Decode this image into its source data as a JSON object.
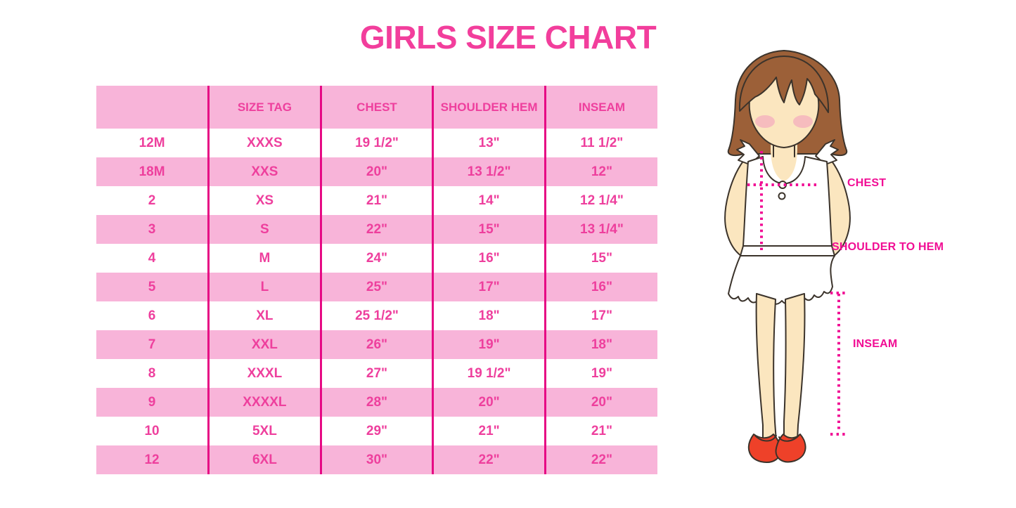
{
  "page": {
    "title": "GIRLS SIZE CHART"
  },
  "colors": {
    "title_pink": "#f23e9c",
    "cell_text_pink": "#ee3f9d",
    "row_pink": "#f8b4d9",
    "grid_magenta": "#e60984",
    "label_pink": "#f10d94",
    "hair_brown": "#9c6038",
    "skin": "#fbe6bf",
    "blush": "#f4a9be",
    "shoe_red": "#ee4129",
    "outline": "#3b332b"
  },
  "table": {
    "columns": [
      "",
      "SIZE TAG",
      "CHEST",
      "SHOULDER HEM",
      "INSEAM"
    ],
    "rows": [
      [
        "12M",
        "XXXS",
        "19 1/2\"",
        "13\"",
        "11 1/2\""
      ],
      [
        "18M",
        "XXS",
        "20\"",
        "13 1/2\"",
        "12\""
      ],
      [
        "2",
        "XS",
        "21\"",
        "14\"",
        "12 1/4\""
      ],
      [
        "3",
        "S",
        "22\"",
        "15\"",
        "13 1/4\""
      ],
      [
        "4",
        "M",
        "24\"",
        "16\"",
        "15\""
      ],
      [
        "5",
        "L",
        "25\"",
        "17\"",
        "16\""
      ],
      [
        "6",
        "XL",
        "25 1/2\"",
        "18\"",
        "17\""
      ],
      [
        "7",
        "XXL",
        "26\"",
        "19\"",
        "18\""
      ],
      [
        "8",
        "XXXL",
        "27\"",
        "19 1/2\"",
        "19\""
      ],
      [
        "9",
        "XXXXL",
        "28\"",
        "20\"",
        "20\""
      ],
      [
        "10",
        "5XL",
        "29\"",
        "21\"",
        "21\""
      ],
      [
        "12",
        "6XL",
        "30\"",
        "22\"",
        "22\""
      ]
    ]
  },
  "figure": {
    "labels": {
      "chest": "CHEST",
      "shoulder_to_hem": "SHOULDER TO HEM",
      "inseam": "INSEAM"
    }
  }
}
